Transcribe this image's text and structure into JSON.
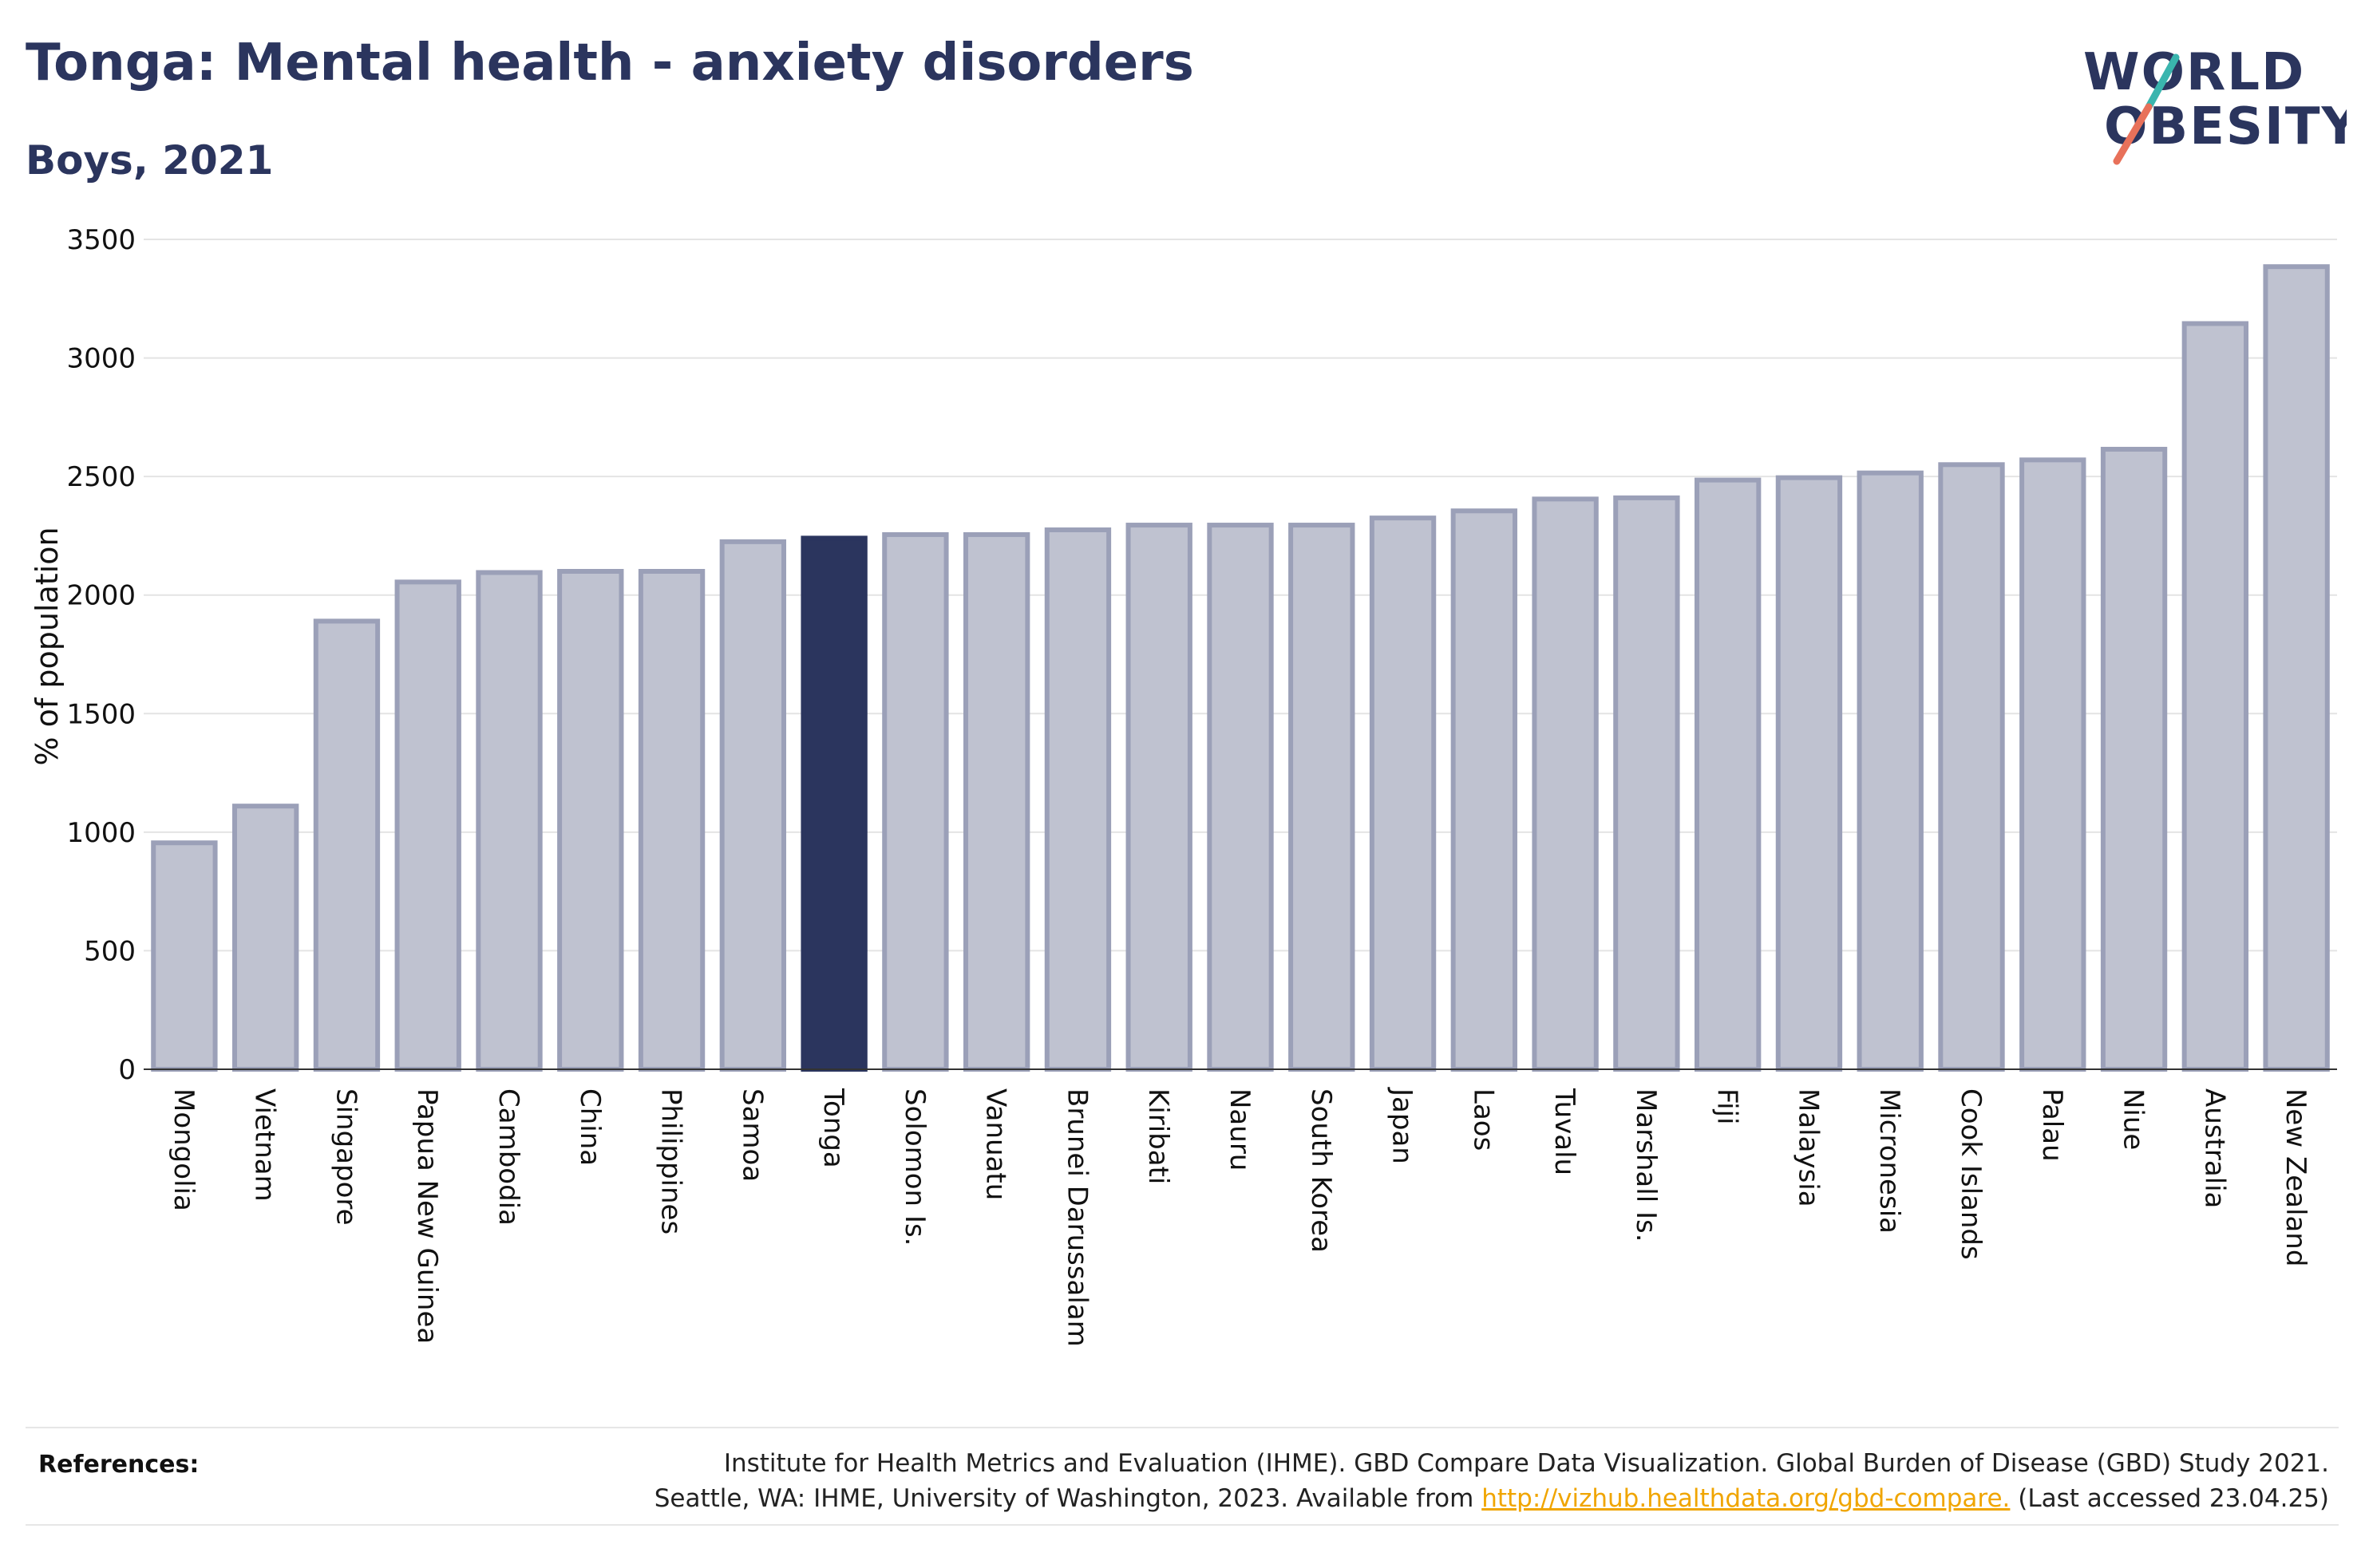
{
  "header": {
    "title": "Tonga: Mental health - anxiety disorders",
    "subtitle": "Boys, 2021"
  },
  "logo": {
    "line1": "WORLD",
    "line2": "OBESITY",
    "accent_teal": "#3ab5ae",
    "accent_coral": "#e8715a"
  },
  "colors": {
    "bar": "#bfc2d0",
    "bar_border": "#9ba0b8",
    "highlight": "#2b355e",
    "text": "#2b355e"
  },
  "chart_data": {
    "type": "bar",
    "title": "Tonga: Mental health - anxiety disorders",
    "subtitle": "Boys, 2021",
    "xlabel": "",
    "ylabel": "% of population",
    "ylim": [
      0,
      3500
    ],
    "yticks": [
      0,
      500,
      1000,
      1500,
      2000,
      2500,
      3000,
      3500
    ],
    "grid": true,
    "highlight": "Tonga",
    "categories": [
      "Mongolia",
      "Vietnam",
      "Singapore",
      "Papua New Guinea",
      "Cambodia",
      "China",
      "Philippines",
      "Samoa",
      "Tonga",
      "Solomon Is.",
      "Vanuatu",
      "Brunei Darussalam",
      "Kiribati",
      "Nauru",
      "South Korea",
      "Japan",
      "Laos",
      "Tuvalu",
      "Marshall Is.",
      "Fiji",
      "Malaysia",
      "Micronesia",
      "Cook Islands",
      "Palau",
      "Niue",
      "Australia",
      "New Zealand"
    ],
    "values": [
      955,
      1110,
      1890,
      2055,
      2095,
      2100,
      2100,
      2225,
      2240,
      2255,
      2255,
      2275,
      2295,
      2295,
      2295,
      2325,
      2355,
      2405,
      2410,
      2485,
      2495,
      2515,
      2550,
      2570,
      2615,
      3145,
      3385
    ]
  },
  "references": {
    "label": "References:",
    "line1": "Institute for Health Metrics and Evaluation (IHME). GBD Compare Data Visualization. Global Burden of Disease (GBD) Study 2021.",
    "line2_prefix": "Seattle, WA: IHME, University of Washington, 2023. Available from ",
    "link": "http://vizhub.healthdata.org/gbd-compare.",
    "line2_suffix": " (Last accessed 23.04.25)"
  }
}
